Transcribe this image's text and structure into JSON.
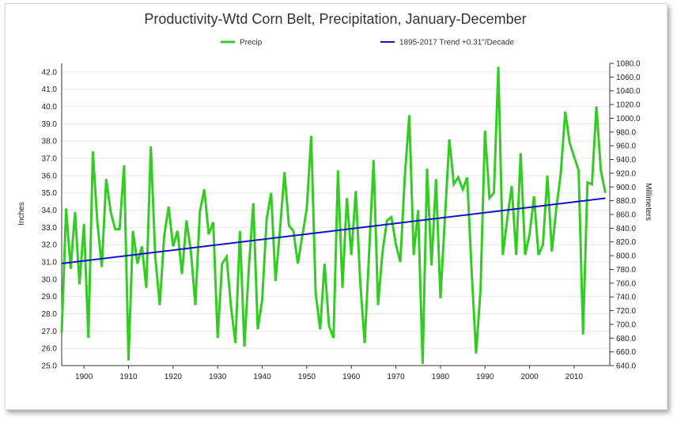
{
  "chart_data": {
    "type": "line",
    "title": "Productivity-Wtd Corn Belt, Precipitation, January-December",
    "ylabel_left": "Inches",
    "ylabel_right": "Millimeters",
    "xlim": [
      1895,
      2018
    ],
    "ylim": [
      25.0,
      42.5
    ],
    "ylim_right": [
      640,
      1080
    ],
    "x_ticks": [
      1900,
      1910,
      1920,
      1930,
      1940,
      1950,
      1960,
      1970,
      1980,
      1990,
      2000,
      2010
    ],
    "y_ticks_left": [
      25.0,
      26.0,
      27.0,
      28.0,
      29.0,
      30.0,
      31.0,
      32.0,
      33.0,
      34.0,
      35.0,
      36.0,
      37.0,
      38.0,
      39.0,
      40.0,
      41.0,
      42.0
    ],
    "y_ticks_right": [
      640.0,
      660.0,
      680.0,
      700.0,
      720.0,
      740.0,
      760.0,
      780.0,
      800.0,
      820.0,
      840.0,
      860.0,
      880.0,
      900.0,
      920.0,
      940.0,
      960.0,
      980.0,
      1000.0,
      1020.0,
      1040.0,
      1060.0,
      1080.0
    ],
    "grid": true,
    "legend_position": "top",
    "series": [
      {
        "name": "Precip",
        "color": "#33cc22",
        "x": [
          1895,
          1896,
          1897,
          1898,
          1899,
          1900,
          1901,
          1902,
          1903,
          1904,
          1905,
          1906,
          1907,
          1908,
          1909,
          1910,
          1911,
          1912,
          1913,
          1914,
          1915,
          1916,
          1917,
          1918,
          1919,
          1920,
          1921,
          1922,
          1923,
          1924,
          1925,
          1926,
          1927,
          1928,
          1929,
          1930,
          1931,
          1932,
          1933,
          1934,
          1935,
          1936,
          1937,
          1938,
          1939,
          1940,
          1941,
          1942,
          1943,
          1944,
          1945,
          1946,
          1947,
          1948,
          1949,
          1950,
          1951,
          1952,
          1953,
          1954,
          1955,
          1956,
          1957,
          1958,
          1959,
          1960,
          1961,
          1962,
          1963,
          1964,
          1965,
          1966,
          1967,
          1968,
          1969,
          1970,
          1971,
          1972,
          1973,
          1974,
          1975,
          1976,
          1977,
          1978,
          1979,
          1980,
          1981,
          1982,
          1983,
          1984,
          1985,
          1986,
          1987,
          1988,
          1989,
          1990,
          1991,
          1992,
          1993,
          1994,
          1995,
          1996,
          1997,
          1998,
          1999,
          2000,
          2001,
          2002,
          2003,
          2004,
          2005,
          2006,
          2007,
          2008,
          2009,
          2010,
          2011,
          2012,
          2013,
          2014,
          2015,
          2016,
          2017
        ],
        "values": [
          26.9,
          34.1,
          30.6,
          33.9,
          29.7,
          33.2,
          26.6,
          37.4,
          33.3,
          30.7,
          35.8,
          33.9,
          32.9,
          32.9,
          36.6,
          25.3,
          32.8,
          30.9,
          31.9,
          29.5,
          37.7,
          31.3,
          28.5,
          32.5,
          34.2,
          31.9,
          32.8,
          30.3,
          33.4,
          31.6,
          28.5,
          33.9,
          35.2,
          32.6,
          33.3,
          26.6,
          30.9,
          31.3,
          28.4,
          26.3,
          32.8,
          26.1,
          30.6,
          34.4,
          27.1,
          28.8,
          33.5,
          35.0,
          29.9,
          32.9,
          36.2,
          33.1,
          32.8,
          30.9,
          32.5,
          34.1,
          38.3,
          29.2,
          27.1,
          30.9,
          27.3,
          26.6,
          36.3,
          29.5,
          34.7,
          31.4,
          35.1,
          29.8,
          26.3,
          31.6,
          36.9,
          28.5,
          31.6,
          33.4,
          33.6,
          32.0,
          31.0,
          35.9,
          39.5,
          31.4,
          34.0,
          25.1,
          36.4,
          30.8,
          35.8,
          28.9,
          33.5,
          38.1,
          35.5,
          35.9,
          35.2,
          35.9,
          30.5,
          25.7,
          29.4,
          38.6,
          34.7,
          35.0,
          42.3,
          31.4,
          33.5,
          35.4,
          31.4,
          37.3,
          31.4,
          32.6,
          34.8,
          31.4,
          32.0,
          36.0,
          31.6,
          34.1,
          36.1,
          39.7,
          37.9,
          37.1,
          36.3,
          26.8,
          35.6,
          35.5,
          40.0,
          36.3,
          35.0
        ]
      },
      {
        "name": "1895-2017 Trend +0.31\"/Decade",
        "color": "#1111cc",
        "x": [
          1895,
          2017
        ],
        "values": [
          30.91,
          34.69
        ]
      }
    ]
  }
}
